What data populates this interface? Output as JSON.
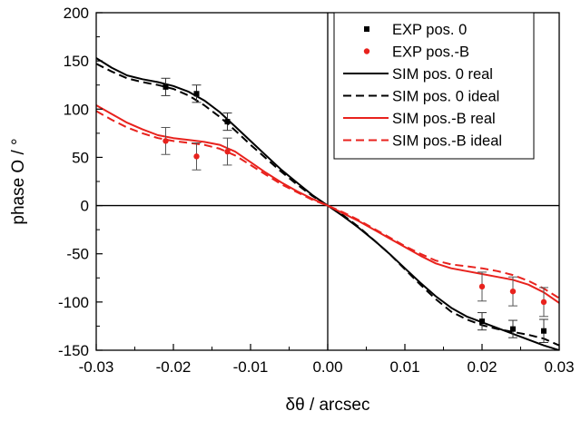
{
  "chart_data": {
    "type": "line",
    "xlabel": "δθ / arcsec",
    "ylabel": "phase O / °",
    "xlim": [
      -0.03,
      0.03
    ],
    "ylim": [
      -150,
      200
    ],
    "x_ticks": [
      -0.03,
      -0.02,
      -0.01,
      0.0,
      0.01,
      0.02,
      0.03
    ],
    "x_tick_labels": [
      "-0.03",
      "-0.02",
      "-0.01",
      "0.00",
      "0.01",
      "0.02",
      "0.03"
    ],
    "y_ticks": [
      -150,
      -100,
      -50,
      0,
      50,
      100,
      150,
      200
    ],
    "y_tick_labels": [
      "-150",
      "-100",
      "-50",
      "0",
      "50",
      "100",
      "150",
      "200"
    ],
    "zero_lines": true,
    "grid": false,
    "legend_position": "top-right",
    "series": [
      {
        "name": "EXP pos. 0",
        "kind": "points",
        "marker": "square",
        "color": "#000000",
        "x": [
          -0.021,
          -0.017,
          -0.013,
          0.02,
          0.024,
          0.028
        ],
        "y": [
          123,
          116,
          87,
          -120,
          -128,
          -130
        ],
        "err": [
          9,
          9,
          9,
          9,
          9,
          12
        ]
      },
      {
        "name": "EXP pos.-B",
        "kind": "points",
        "marker": "circle",
        "color": "#e8221d",
        "x": [
          -0.021,
          -0.017,
          -0.013,
          0.02,
          0.024,
          0.028
        ],
        "y": [
          67,
          51,
          56,
          -84,
          -89,
          -100
        ],
        "err": [
          14,
          14,
          14,
          15,
          15,
          15
        ]
      },
      {
        "name": "SIM pos. 0 real",
        "kind": "line",
        "dash": "solid",
        "color": "#000000",
        "x": [
          -0.03,
          -0.028,
          -0.026,
          -0.024,
          -0.022,
          -0.02,
          -0.018,
          -0.016,
          -0.014,
          -0.012,
          -0.01,
          -0.008,
          -0.006,
          -0.004,
          -0.002,
          0.0,
          0.002,
          0.004,
          0.006,
          0.008,
          0.01,
          0.012,
          0.014,
          0.016,
          0.018,
          0.02,
          0.022,
          0.024,
          0.026,
          0.028,
          0.03
        ],
        "y": [
          153,
          143,
          135,
          131,
          128,
          124,
          118,
          109,
          97,
          82,
          67,
          52,
          37,
          24,
          11,
          0,
          -11,
          -23,
          -36,
          -50,
          -65,
          -80,
          -94,
          -106,
          -115,
          -121,
          -127,
          -133,
          -139,
          -145,
          -150
        ]
      },
      {
        "name": "SIM pos. 0 ideal",
        "kind": "line",
        "dash": "dashed",
        "color": "#000000",
        "x": [
          -0.03,
          -0.028,
          -0.026,
          -0.024,
          -0.022,
          -0.02,
          -0.018,
          -0.016,
          -0.014,
          -0.012,
          -0.01,
          -0.008,
          -0.006,
          -0.004,
          -0.002,
          0.0,
          0.002,
          0.004,
          0.006,
          0.008,
          0.01,
          0.012,
          0.014,
          0.016,
          0.018,
          0.02,
          0.022,
          0.024,
          0.026,
          0.028,
          0.03
        ],
        "y": [
          147,
          139,
          132,
          128,
          125,
          121,
          114,
          104,
          92,
          78,
          63,
          49,
          35,
          22,
          10,
          0,
          -10,
          -22,
          -36,
          -50,
          -66,
          -82,
          -97,
          -110,
          -118,
          -124,
          -128,
          -131,
          -134,
          -138,
          -145
        ]
      },
      {
        "name": "SIM pos.-B real",
        "kind": "line",
        "dash": "solid",
        "color": "#e8221d",
        "x": [
          -0.03,
          -0.028,
          -0.026,
          -0.024,
          -0.022,
          -0.02,
          -0.018,
          -0.016,
          -0.014,
          -0.012,
          -0.01,
          -0.008,
          -0.006,
          -0.004,
          -0.002,
          0.0,
          0.002,
          0.004,
          0.006,
          0.008,
          0.01,
          0.012,
          0.014,
          0.016,
          0.018,
          0.02,
          0.022,
          0.024,
          0.026,
          0.028,
          0.03
        ],
        "y": [
          104,
          95,
          86,
          79,
          73,
          70,
          68,
          66,
          63,
          56,
          45,
          34,
          24,
          15,
          7,
          0,
          -8,
          -16,
          -25,
          -34,
          -43,
          -52,
          -60,
          -65,
          -68,
          -71,
          -74,
          -77,
          -82,
          -90,
          -101
        ]
      },
      {
        "name": "SIM pos.-B ideal",
        "kind": "line",
        "dash": "dashed",
        "color": "#e8221d",
        "x": [
          -0.03,
          -0.028,
          -0.026,
          -0.024,
          -0.022,
          -0.02,
          -0.018,
          -0.016,
          -0.014,
          -0.012,
          -0.01,
          -0.008,
          -0.006,
          -0.004,
          -0.002,
          0.0,
          0.002,
          0.004,
          0.006,
          0.008,
          0.01,
          0.012,
          0.014,
          0.016,
          0.018,
          0.02,
          0.022,
          0.024,
          0.026,
          0.028,
          0.03
        ],
        "y": [
          98,
          89,
          81,
          75,
          70,
          67,
          65,
          63,
          59,
          52,
          42,
          32,
          22,
          14,
          6,
          0,
          -7,
          -15,
          -24,
          -33,
          -42,
          -50,
          -57,
          -61,
          -63,
          -65,
          -68,
          -72,
          -78,
          -86,
          -96
        ]
      }
    ]
  }
}
